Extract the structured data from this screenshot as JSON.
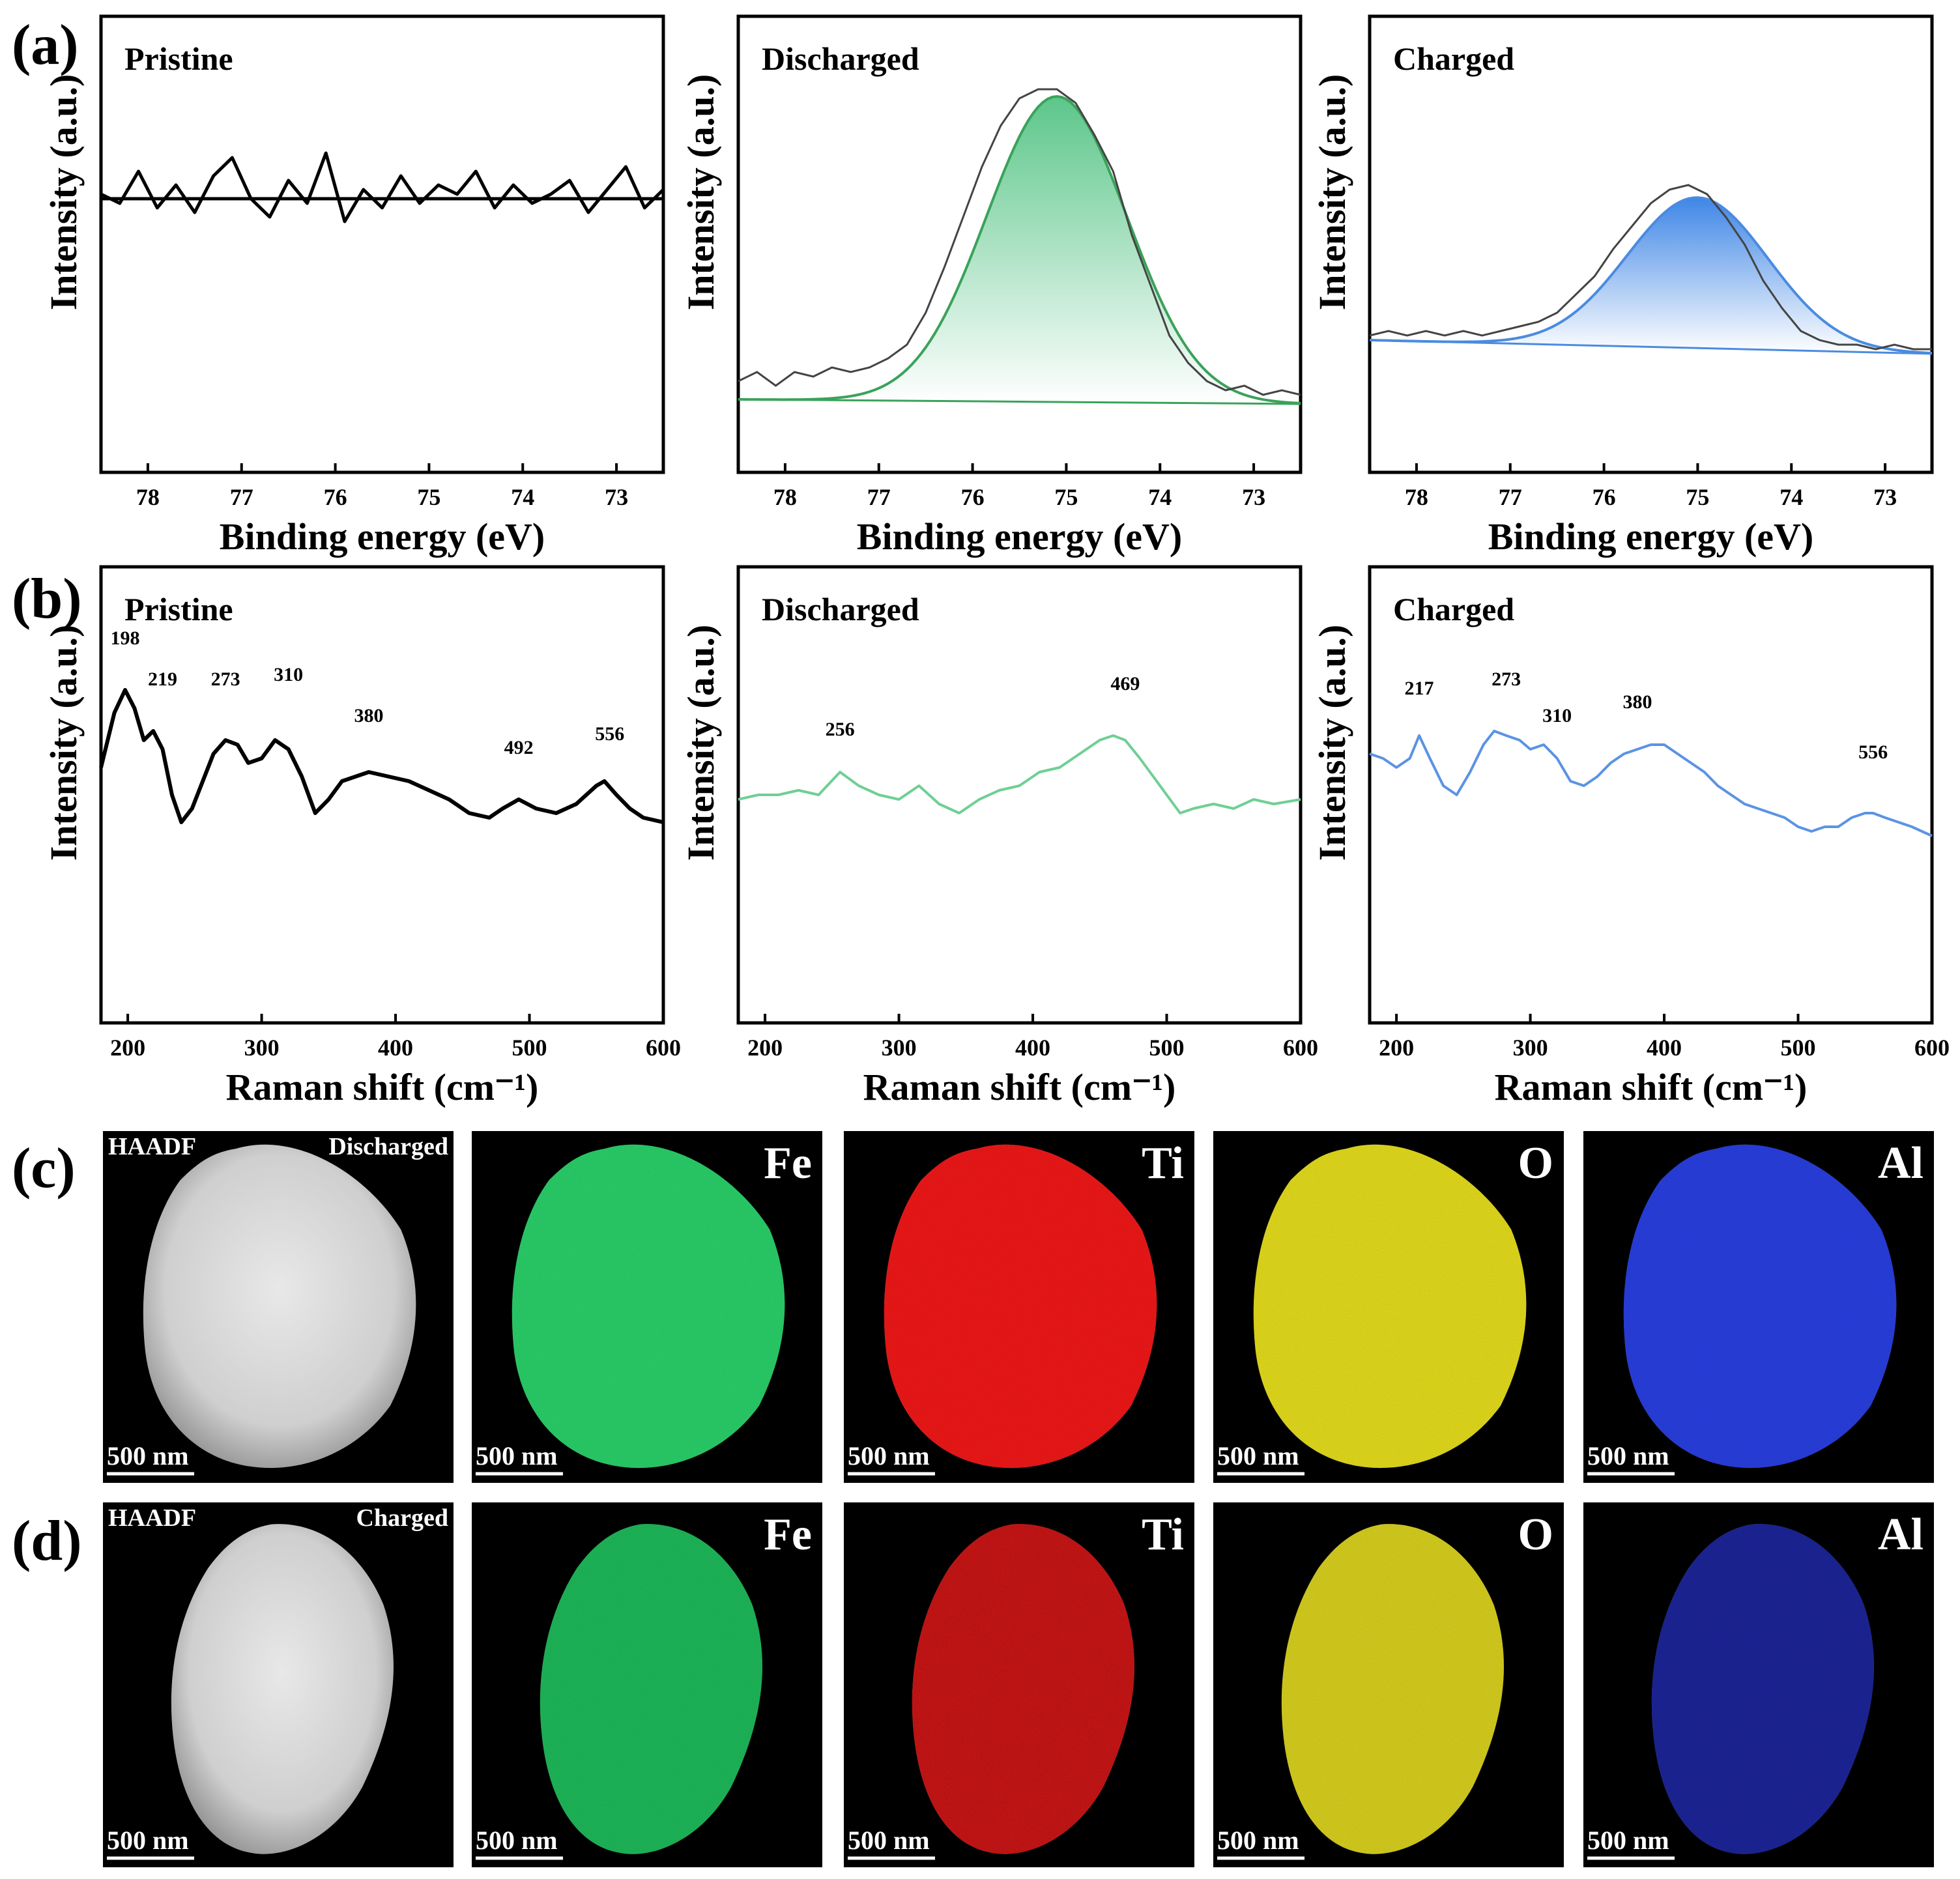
{
  "figure": {
    "panel_labels": [
      "(a)",
      "(b)",
      "(c)",
      "(d)"
    ]
  },
  "chart_data": [
    {
      "id": "a1",
      "type": "line",
      "panel": "(a)",
      "title": "Pristine",
      "xlabel": "Binding energy (eV)",
      "ylabel": "Intensity (a.u.)",
      "xlim": [
        78.5,
        72.5
      ],
      "ylim": [
        0,
        10
      ],
      "xticks": [
        78,
        77,
        76,
        75,
        74,
        73
      ],
      "color": "#000000",
      "baseline": {
        "x": [
          78.5,
          72.5
        ],
        "y": [
          6.0,
          6.0
        ]
      },
      "series": [
        {
          "name": "raw",
          "x": [
            78.5,
            78.3,
            78.1,
            77.9,
            77.7,
            77.5,
            77.3,
            77.1,
            76.9,
            76.7,
            76.5,
            76.3,
            76.1,
            75.9,
            75.7,
            75.5,
            75.3,
            75.1,
            74.9,
            74.7,
            74.5,
            74.3,
            74.1,
            73.9,
            73.7,
            73.5,
            73.3,
            73.1,
            72.9,
            72.7,
            72.5
          ],
          "y": [
            6.1,
            5.9,
            6.6,
            5.8,
            6.3,
            5.7,
            6.5,
            6.9,
            6.0,
            5.6,
            6.4,
            5.9,
            7.0,
            5.5,
            6.2,
            5.8,
            6.5,
            5.9,
            6.3,
            6.1,
            6.6,
            5.8,
            6.3,
            5.9,
            6.1,
            6.4,
            5.7,
            6.2,
            6.7,
            5.8,
            6.2
          ]
        }
      ]
    },
    {
      "id": "a2",
      "type": "area",
      "panel": "(a)",
      "title": "Discharged",
      "xlabel": "Binding energy (eV)",
      "ylabel": "Intensity (a.u.)",
      "xlim": [
        78.5,
        72.5
      ],
      "ylim": [
        0,
        10
      ],
      "xticks": [
        78,
        77,
        76,
        75,
        74,
        73
      ],
      "color": "#3aa25a",
      "baseline": {
        "x": [
          78.5,
          72.5
        ],
        "y": [
          1.6,
          1.5
        ]
      },
      "fit": {
        "center": 75.1,
        "amplitude": 6.7,
        "sigma": 0.75
      },
      "series": [
        {
          "name": "raw",
          "x": [
            78.5,
            78.3,
            78.1,
            77.9,
            77.7,
            77.5,
            77.3,
            77.1,
            76.9,
            76.7,
            76.5,
            76.3,
            76.1,
            75.9,
            75.7,
            75.5,
            75.3,
            75.1,
            74.9,
            74.7,
            74.5,
            74.3,
            74.1,
            73.9,
            73.7,
            73.5,
            73.3,
            73.1,
            72.9,
            72.7,
            72.5
          ],
          "y": [
            2.0,
            2.2,
            1.9,
            2.2,
            2.1,
            2.3,
            2.2,
            2.3,
            2.5,
            2.8,
            3.5,
            4.5,
            5.6,
            6.7,
            7.6,
            8.2,
            8.4,
            8.4,
            8.1,
            7.4,
            6.6,
            5.2,
            4.1,
            3.0,
            2.4,
            2.0,
            1.8,
            1.9,
            1.7,
            1.8,
            1.7
          ]
        }
      ]
    },
    {
      "id": "a3",
      "type": "area",
      "panel": "(a)",
      "title": "Charged",
      "xlabel": "Binding energy (eV)",
      "ylabel": "Intensity (a.u.)",
      "xlim": [
        78.5,
        72.5
      ],
      "ylim": [
        0,
        10
      ],
      "xticks": [
        78,
        77,
        76,
        75,
        74,
        73
      ],
      "color": "#4a8be0",
      "baseline": {
        "x": [
          78.5,
          72.5
        ],
        "y": [
          2.9,
          2.6
        ]
      },
      "fit": {
        "center": 75.0,
        "amplitude": 3.3,
        "sigma": 0.75
      },
      "series": [
        {
          "name": "raw",
          "x": [
            78.5,
            78.3,
            78.1,
            77.9,
            77.7,
            77.5,
            77.3,
            77.1,
            76.9,
            76.7,
            76.5,
            76.3,
            76.1,
            75.9,
            75.7,
            75.5,
            75.3,
            75.1,
            74.9,
            74.7,
            74.5,
            74.3,
            74.1,
            73.9,
            73.7,
            73.5,
            73.3,
            73.1,
            72.9,
            72.7,
            72.5
          ],
          "y": [
            3.0,
            3.1,
            3.0,
            3.1,
            3.0,
            3.1,
            3.0,
            3.1,
            3.2,
            3.3,
            3.5,
            3.9,
            4.3,
            4.9,
            5.4,
            5.9,
            6.2,
            6.3,
            6.1,
            5.6,
            5.0,
            4.2,
            3.6,
            3.1,
            2.9,
            2.8,
            2.8,
            2.7,
            2.8,
            2.7,
            2.7
          ]
        }
      ]
    },
    {
      "id": "b1",
      "type": "line",
      "panel": "(b)",
      "title": "Pristine",
      "xlabel": "Raman shift (cm⁻¹)",
      "ylabel": "Intensity (a.u.)",
      "xlim": [
        180,
        600
      ],
      "ylim": [
        0,
        10
      ],
      "xticks": [
        200,
        300,
        400,
        500,
        600
      ],
      "color": "#000000",
      "stroke": 6,
      "series": [
        {
          "name": "raman",
          "x": [
            180,
            190,
            198,
            205,
            212,
            219,
            226,
            233,
            240,
            248,
            256,
            264,
            273,
            282,
            290,
            300,
            310,
            320,
            330,
            340,
            350,
            360,
            370,
            380,
            395,
            410,
            425,
            440,
            455,
            470,
            480,
            492,
            505,
            520,
            535,
            550,
            556,
            565,
            575,
            585,
            600
          ],
          "y": [
            5.6,
            6.8,
            7.3,
            6.9,
            6.2,
            6.4,
            6.0,
            5.0,
            4.4,
            4.7,
            5.3,
            5.9,
            6.2,
            6.1,
            5.7,
            5.8,
            6.2,
            6.0,
            5.4,
            4.6,
            4.9,
            5.3,
            5.4,
            5.5,
            5.4,
            5.3,
            5.1,
            4.9,
            4.6,
            4.5,
            4.7,
            4.9,
            4.7,
            4.6,
            4.8,
            5.2,
            5.3,
            5.0,
            4.7,
            4.5,
            4.4
          ]
        }
      ],
      "annotations": [
        {
          "text": "198",
          "x": 198,
          "y": 8.3
        },
        {
          "text": "219",
          "x": 226,
          "y": 7.4
        },
        {
          "text": "273",
          "x": 273,
          "y": 7.4
        },
        {
          "text": "310",
          "x": 320,
          "y": 7.5
        },
        {
          "text": "380",
          "x": 380,
          "y": 6.6
        },
        {
          "text": "492",
          "x": 492,
          "y": 5.9
        },
        {
          "text": "556",
          "x": 560,
          "y": 6.2
        }
      ]
    },
    {
      "id": "b2",
      "type": "line",
      "panel": "(b)",
      "title": "Discharged",
      "xlabel": "Raman shift (cm⁻¹)",
      "ylabel": "Intensity (a.u.)",
      "xlim": [
        180,
        600
      ],
      "ylim": [
        0,
        10
      ],
      "xticks": [
        200,
        300,
        400,
        500,
        600
      ],
      "color": "#6fcf94",
      "stroke": 4,
      "series": [
        {
          "name": "raman",
          "x": [
            180,
            195,
            210,
            225,
            240,
            256,
            270,
            285,
            300,
            315,
            330,
            345,
            360,
            375,
            390,
            405,
            420,
            435,
            450,
            460,
            469,
            480,
            490,
            500,
            510,
            520,
            535,
            550,
            565,
            580,
            600
          ],
          "y": [
            4.9,
            5.0,
            5.0,
            5.1,
            5.0,
            5.5,
            5.2,
            5.0,
            4.9,
            5.2,
            4.8,
            4.6,
            4.9,
            5.1,
            5.2,
            5.5,
            5.6,
            5.9,
            6.2,
            6.3,
            6.2,
            5.8,
            5.4,
            5.0,
            4.6,
            4.7,
            4.8,
            4.7,
            4.9,
            4.8,
            4.9
          ]
        }
      ],
      "annotations": [
        {
          "text": "256",
          "x": 256,
          "y": 6.3
        },
        {
          "text": "469",
          "x": 469,
          "y": 7.3
        }
      ]
    },
    {
      "id": "b3",
      "type": "line",
      "panel": "(b)",
      "title": "Charged",
      "xlabel": "Raman shift (cm⁻¹)",
      "ylabel": "Intensity (a.u.)",
      "xlim": [
        180,
        600
      ],
      "ylim": [
        0,
        10
      ],
      "xticks": [
        200,
        300,
        400,
        500,
        600
      ],
      "color": "#5b93e4",
      "stroke": 4,
      "series": [
        {
          "name": "raman",
          "x": [
            180,
            190,
            200,
            210,
            217,
            225,
            235,
            245,
            255,
            265,
            273,
            282,
            292,
            300,
            310,
            320,
            330,
            340,
            350,
            360,
            370,
            380,
            390,
            400,
            410,
            420,
            430,
            440,
            450,
            460,
            470,
            480,
            490,
            500,
            510,
            520,
            530,
            540,
            550,
            556,
            565,
            575,
            585,
            600
          ],
          "y": [
            5.9,
            5.8,
            5.6,
            5.8,
            6.3,
            5.8,
            5.2,
            5.0,
            5.5,
            6.1,
            6.4,
            6.3,
            6.2,
            6.0,
            6.1,
            5.8,
            5.3,
            5.2,
            5.4,
            5.7,
            5.9,
            6.0,
            6.1,
            6.1,
            5.9,
            5.7,
            5.5,
            5.2,
            5.0,
            4.8,
            4.7,
            4.6,
            4.5,
            4.3,
            4.2,
            4.3,
            4.3,
            4.5,
            4.6,
            4.6,
            4.5,
            4.4,
            4.3,
            4.1
          ]
        }
      ],
      "annotations": [
        {
          "text": "217",
          "x": 217,
          "y": 7.2
        },
        {
          "text": "273",
          "x": 282,
          "y": 7.4
        },
        {
          "text": "310",
          "x": 320,
          "y": 6.6
        },
        {
          "text": "380",
          "x": 380,
          "y": 6.9
        },
        {
          "text": "556",
          "x": 556,
          "y": 5.8
        }
      ]
    }
  ],
  "maps": [
    {
      "row": "(c)",
      "items": [
        {
          "type": "haadf",
          "label": "HAADF",
          "state": "Discharged",
          "scale": "500 nm"
        },
        {
          "type": "element",
          "element": "Fe",
          "color": "#2bd06a",
          "scale": "500 nm"
        },
        {
          "type": "element",
          "element": "Ti",
          "color": "#f01818",
          "scale": "500 nm"
        },
        {
          "type": "element",
          "element": "O",
          "color": "#e4dc1c",
          "scale": "500 nm"
        },
        {
          "type": "element",
          "element": "Al",
          "color": "#2a3fe0",
          "scale": "500 nm"
        }
      ]
    },
    {
      "row": "(d)",
      "items": [
        {
          "type": "haadf",
          "label": "HAADF",
          "state": "Charged",
          "scale": "500 nm"
        },
        {
          "type": "element",
          "element": "Fe",
          "color": "#1fb95a",
          "scale": "500 nm"
        },
        {
          "type": "element",
          "element": "Ti",
          "color": "#c81414",
          "scale": "500 nm"
        },
        {
          "type": "element",
          "element": "O",
          "color": "#d8d020",
          "scale": "500 nm"
        },
        {
          "type": "element",
          "element": "Al",
          "color": "#1c2598",
          "scale": "500 nm"
        }
      ]
    }
  ]
}
